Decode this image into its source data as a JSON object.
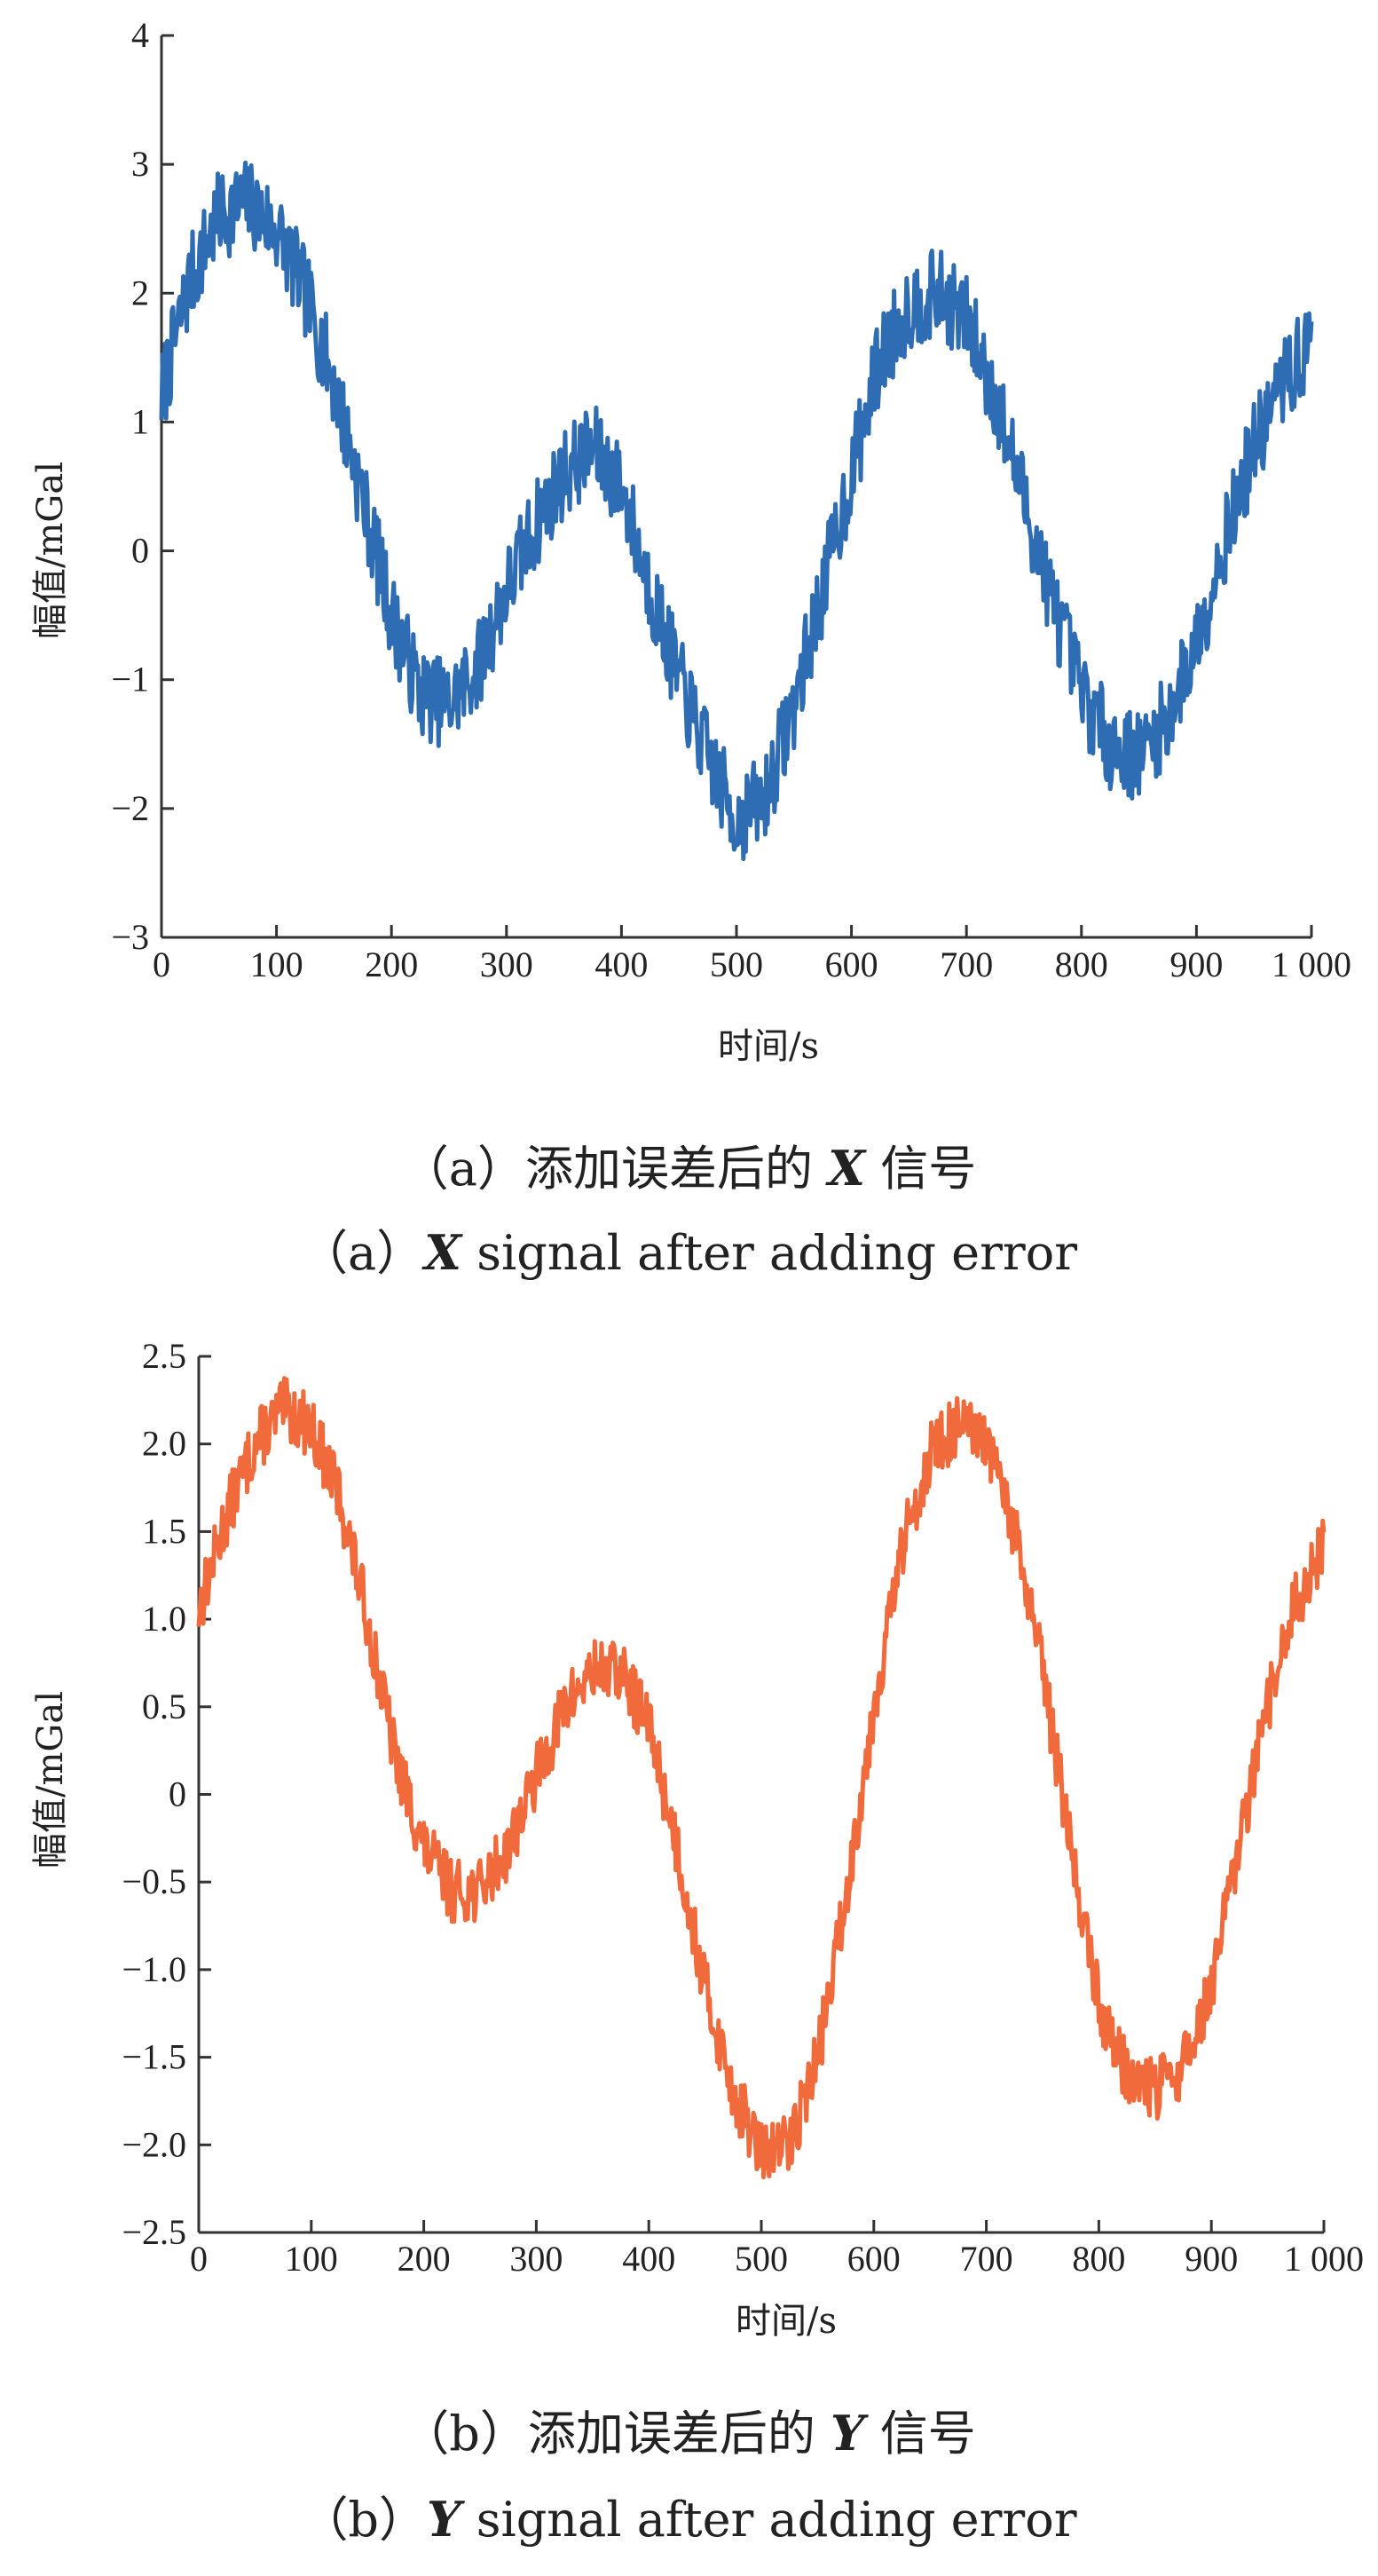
{
  "charts": [
    {
      "chart_data": {
        "type": "line",
        "xlabel": "时间/s",
        "ylabel": "幅值/mGal",
        "xlim": [
          0,
          1000
        ],
        "ylim": [
          -3,
          4
        ],
        "xticks": [
          0,
          100,
          200,
          300,
          400,
          500,
          600,
          700,
          800,
          900,
          1000
        ],
        "xtick_labels": [
          "0",
          "100",
          "200",
          "300",
          "400",
          "500",
          "600",
          "700",
          "800",
          "900",
          "1 000"
        ],
        "yticks": [
          -3,
          -2,
          -1,
          0,
          1,
          2,
          3,
          4
        ],
        "ytick_labels": [
          "−3",
          "−2",
          "−1",
          "0",
          "1",
          "2",
          "3",
          "4"
        ],
        "grid": false,
        "color": "#2e6db4",
        "series": [
          {
            "x": [
              0,
              25,
              50,
              75,
              100,
              125,
              150,
              175,
              200,
              225,
              250,
              275,
              300,
              325,
              350,
              375,
              400,
              425,
              450,
              475,
              500,
              525,
              550,
              575,
              600,
              625,
              650,
              675,
              700,
              725,
              750,
              775,
              800,
              825,
              850,
              875,
              900,
              925,
              950,
              975,
              1000
            ],
            "values": [
              1.2,
              2.1,
              2.6,
              2.7,
              2.5,
              2.0,
              1.3,
              0.4,
              -0.5,
              -1.1,
              -1.2,
              -0.9,
              -0.3,
              0.2,
              0.6,
              0.8,
              0.5,
              -0.3,
              -1.0,
              -1.6,
              -2.1,
              -1.9,
              -1.2,
              -0.3,
              0.6,
              1.5,
              1.9,
              2.0,
              1.8,
              1.2,
              0.4,
              -0.4,
              -1.1,
              -1.5,
              -1.6,
              -1.3,
              -0.7,
              0.1,
              0.8,
              1.3,
              1.6
            ],
            "noise": 0.35
          }
        ]
      },
      "caption_cn_prefix": "（a）添加误差后的 ",
      "caption_cn_var": "X",
      "caption_cn_suffix": " 信号",
      "caption_en_prefix": "（a）",
      "caption_en_var": "X",
      "caption_en_suffix": " signal after adding error"
    },
    {
      "chart_data": {
        "type": "line",
        "xlabel": "时间/s",
        "ylabel": "幅值/mGal",
        "xlim": [
          0,
          1000
        ],
        "ylim": [
          -2.5,
          2.5
        ],
        "xticks": [
          0,
          100,
          200,
          300,
          400,
          500,
          600,
          700,
          800,
          900,
          1000
        ],
        "xtick_labels": [
          "0",
          "100",
          "200",
          "300",
          "400",
          "500",
          "600",
          "700",
          "800",
          "900",
          "1 000"
        ],
        "yticks": [
          -2.5,
          -2.0,
          -1.5,
          -1.0,
          -0.5,
          0,
          0.5,
          1.0,
          1.5,
          2.0,
          2.5
        ],
        "ytick_labels": [
          "−2.5",
          "−2.0",
          "−1.5",
          "−1.0",
          "−0.5",
          "0",
          "0.5",
          "1.0",
          "1.5",
          "2.0",
          "2.5"
        ],
        "grid": false,
        "color": "#f06a3b",
        "series": [
          {
            "x": [
              0,
              25,
              50,
              75,
              100,
              125,
              150,
              175,
              200,
              225,
              250,
              275,
              300,
              325,
              350,
              375,
              400,
              425,
              450,
              475,
              500,
              525,
              550,
              575,
              600,
              625,
              650,
              675,
              700,
              725,
              750,
              775,
              800,
              825,
              850,
              875,
              900,
              925,
              950,
              975,
              1000
            ],
            "values": [
              1.05,
              1.6,
              2.0,
              2.2,
              2.1,
              1.7,
              1.0,
              0.2,
              -0.3,
              -0.55,
              -0.55,
              -0.3,
              0.1,
              0.5,
              0.7,
              0.7,
              0.4,
              -0.3,
              -1.1,
              -1.7,
              -2.05,
              -2.0,
              -1.5,
              -0.6,
              0.5,
              1.4,
              1.95,
              2.1,
              2.0,
              1.5,
              0.7,
              -0.3,
              -1.2,
              -1.6,
              -1.7,
              -1.55,
              -1.1,
              -0.3,
              0.5,
              1.1,
              1.4
            ],
            "noise": 0.18
          }
        ]
      },
      "caption_cn_prefix": "（b）添加误差后的 ",
      "caption_cn_var": "Y",
      "caption_cn_suffix": " 信号",
      "caption_en_prefix": "（b）",
      "caption_en_var": "Y",
      "caption_en_suffix": " signal after adding error"
    }
  ]
}
